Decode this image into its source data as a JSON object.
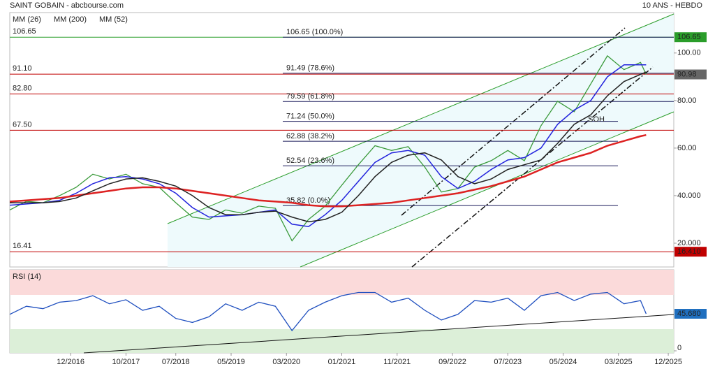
{
  "header": {
    "title": "SAINT GOBAIN - abcbourse.com",
    "period": "10 ANS - HEBDO"
  },
  "chart_data": [
    {
      "type": "line",
      "x": [
        "2016-01",
        "2016-04",
        "2016-07",
        "2016-10",
        "2017-01",
        "2017-04",
        "2017-07",
        "2017-10",
        "2018-01",
        "2018-04",
        "2018-07",
        "2018-10",
        "2019-01",
        "2019-04",
        "2019-07",
        "2019-10",
        "2020-01",
        "2020-04",
        "2020-07",
        "2020-10",
        "2021-01",
        "2021-04",
        "2021-07",
        "2021-10",
        "2022-01",
        "2022-04",
        "2022-07",
        "2022-10",
        "2023-01",
        "2023-04",
        "2023-07",
        "2023-10",
        "2024-01",
        "2024-04",
        "2024-07",
        "2024-10",
        "2025-01",
        "2025-04",
        "2025-07",
        "2025-08"
      ],
      "series": [
        {
          "color": "#3a9a3a",
          "values": [
            34,
            37.6,
            37,
            40,
            43.5,
            49,
            47,
            49,
            45,
            43.5,
            37,
            31,
            30,
            34,
            32.6,
            35.6,
            34.7,
            21,
            30,
            35.6,
            44.4,
            53,
            61,
            59,
            60.6,
            52,
            41.5,
            43,
            52,
            54.7,
            59,
            54.7,
            69.4,
            79.7,
            75.3,
            87,
            98.8,
            93,
            96,
            90.98
          ]
        },
        {
          "name": "MM (26)",
          "color": "#2222dd",
          "values": [
            36,
            36.5,
            37,
            38,
            41,
            45,
            47.5,
            48,
            47,
            45,
            41,
            35,
            31,
            31.5,
            32,
            33,
            34,
            28,
            27,
            32,
            38,
            46,
            54,
            58,
            59,
            57,
            48,
            43,
            46,
            51,
            55,
            56,
            60,
            70,
            76,
            80,
            90,
            95,
            95,
            95
          ]
        },
        {
          "name": "MM (200)",
          "color": "#dd2222",
          "values": [
            37.5,
            38,
            38.5,
            39,
            40,
            41,
            42,
            43,
            43.5,
            43.5,
            43,
            42,
            41,
            40,
            39,
            38,
            37.5,
            37,
            36,
            35.5,
            35.5,
            36,
            36.5,
            37,
            38,
            39,
            40,
            41,
            42.5,
            44,
            46,
            48,
            51,
            54,
            56,
            58,
            61,
            63,
            65,
            65.5
          ]
        },
        {
          "name": "MM (52)",
          "color": "#222222",
          "values": [
            37,
            37,
            37,
            37.5,
            39,
            42,
            45,
            47,
            47.5,
            46,
            44,
            40,
            35,
            32,
            32,
            33,
            33.5,
            31,
            29,
            30,
            33,
            40,
            48,
            54,
            57,
            58,
            55,
            48,
            45,
            47,
            51,
            53,
            55,
            62,
            70,
            74,
            82,
            88,
            91,
            92
          ]
        }
      ],
      "xlim": [
        "2016-01",
        "2026-01"
      ],
      "xticks": [
        {
          "value": "2016-12",
          "label": "12/2016"
        },
        {
          "value": "2017-10",
          "label": "10/2017"
        },
        {
          "value": "2018-07",
          "label": "07/2018"
        },
        {
          "value": "2019-05",
          "label": "05/2019"
        },
        {
          "value": "2020-03",
          "label": "03/2020"
        },
        {
          "value": "2021-01",
          "label": "01/2021"
        },
        {
          "value": "2021-11",
          "label": "11/2021"
        },
        {
          "value": "2022-09",
          "label": "09/2022"
        },
        {
          "value": "2023-07",
          "label": "07/2023"
        },
        {
          "value": "2024-05",
          "label": "05/2024"
        },
        {
          "value": "2025-03",
          "label": "03/2025"
        },
        {
          "value": "2025-12",
          "label": "12/2025"
        }
      ],
      "ylim": [
        10,
        117
      ],
      "yticks": [
        {
          "value": 20,
          "label": "20.000"
        },
        {
          "value": 40,
          "label": "40.000"
        },
        {
          "value": 60,
          "label": "60.00"
        },
        {
          "value": 80,
          "label": "80.00"
        },
        {
          "value": 100,
          "label": "100.00"
        }
      ],
      "levels": [
        {
          "value": 106.65,
          "color": "#2a9d2a"
        },
        {
          "value": {
            "value": 91.1,
            "label": "91.10"
          },
          "color": "#c00000"
        },
        {
          "value": {
            "value": 82.8,
            "label": "82.80"
          },
          "color": "#c00000"
        },
        {
          "value": {
            "value": 67.5,
            "label": "67.50"
          },
          "color": "#c00000"
        },
        {
          "value": 16.41,
          "color": "#c00000"
        }
      ],
      "fibo": [
        {
          "value": 106.65,
          "label": "106.65 (100.0%)"
        },
        {
          "value": 91.49,
          "label": "91.49 (78.6%)"
        },
        {
          "value": 79.59,
          "label": "79.59 (61.8%)"
        },
        {
          "value": 71.24,
          "label": "71.24 (50.0%)"
        },
        {
          "value": 62.88,
          "label": "62.88 (38.2%)"
        },
        {
          "value": 52.54,
          "label": "52.54 (23.6%)"
        },
        {
          "value": 35.82,
          "label": "35.82 (0.0%)"
        }
      ],
      "markers": [
        {
          "value": 106.65,
          "color": "#2a9d2a"
        },
        {
          "value": 90.98,
          "color": "#666666"
        },
        {
          "value": {
            "value": 16.41,
            "label": "16.410"
          },
          "color": "#c00000"
        }
      ],
      "annotations": [
        {
          "text": "SOH",
          "x": "2024-11",
          "y": 72
        }
      ]
    },
    {
      "type": "line",
      "title": "RSI (14)",
      "x": [
        "2016-01",
        "2016-04",
        "2016-07",
        "2016-10",
        "2017-01",
        "2017-04",
        "2017-07",
        "2017-10",
        "2018-01",
        "2018-04",
        "2018-07",
        "2018-10",
        "2019-01",
        "2019-04",
        "2019-07",
        "2019-10",
        "2020-01",
        "2020-04",
        "2020-07",
        "2020-10",
        "2021-01",
        "2021-04",
        "2021-07",
        "2021-10",
        "2022-01",
        "2022-04",
        "2022-07",
        "2022-10",
        "2023-01",
        "2023-04",
        "2023-07",
        "2023-10",
        "2024-01",
        "2024-04",
        "2024-07",
        "2024-10",
        "2025-01",
        "2025-04",
        "2025-07",
        "2025-08"
      ],
      "series": [
        {
          "color": "#1f4fbf",
          "values": [
            45,
            55,
            52,
            60,
            62,
            68,
            58,
            63,
            50,
            55,
            40,
            35,
            42,
            58,
            50,
            60,
            55,
            25,
            50,
            60,
            68,
            72,
            72,
            60,
            65,
            50,
            38,
            45,
            62,
            60,
            65,
            50,
            68,
            72,
            62,
            70,
            72,
            58,
            62,
            45.68
          ]
        }
      ],
      "ylim": [
        0,
        100
      ],
      "yticks": [
        0
      ],
      "markers": [
        {
          "value": {
            "value": 45.68,
            "label": "45.680"
          },
          "color": "#1f6fbf"
        }
      ]
    }
  ]
}
